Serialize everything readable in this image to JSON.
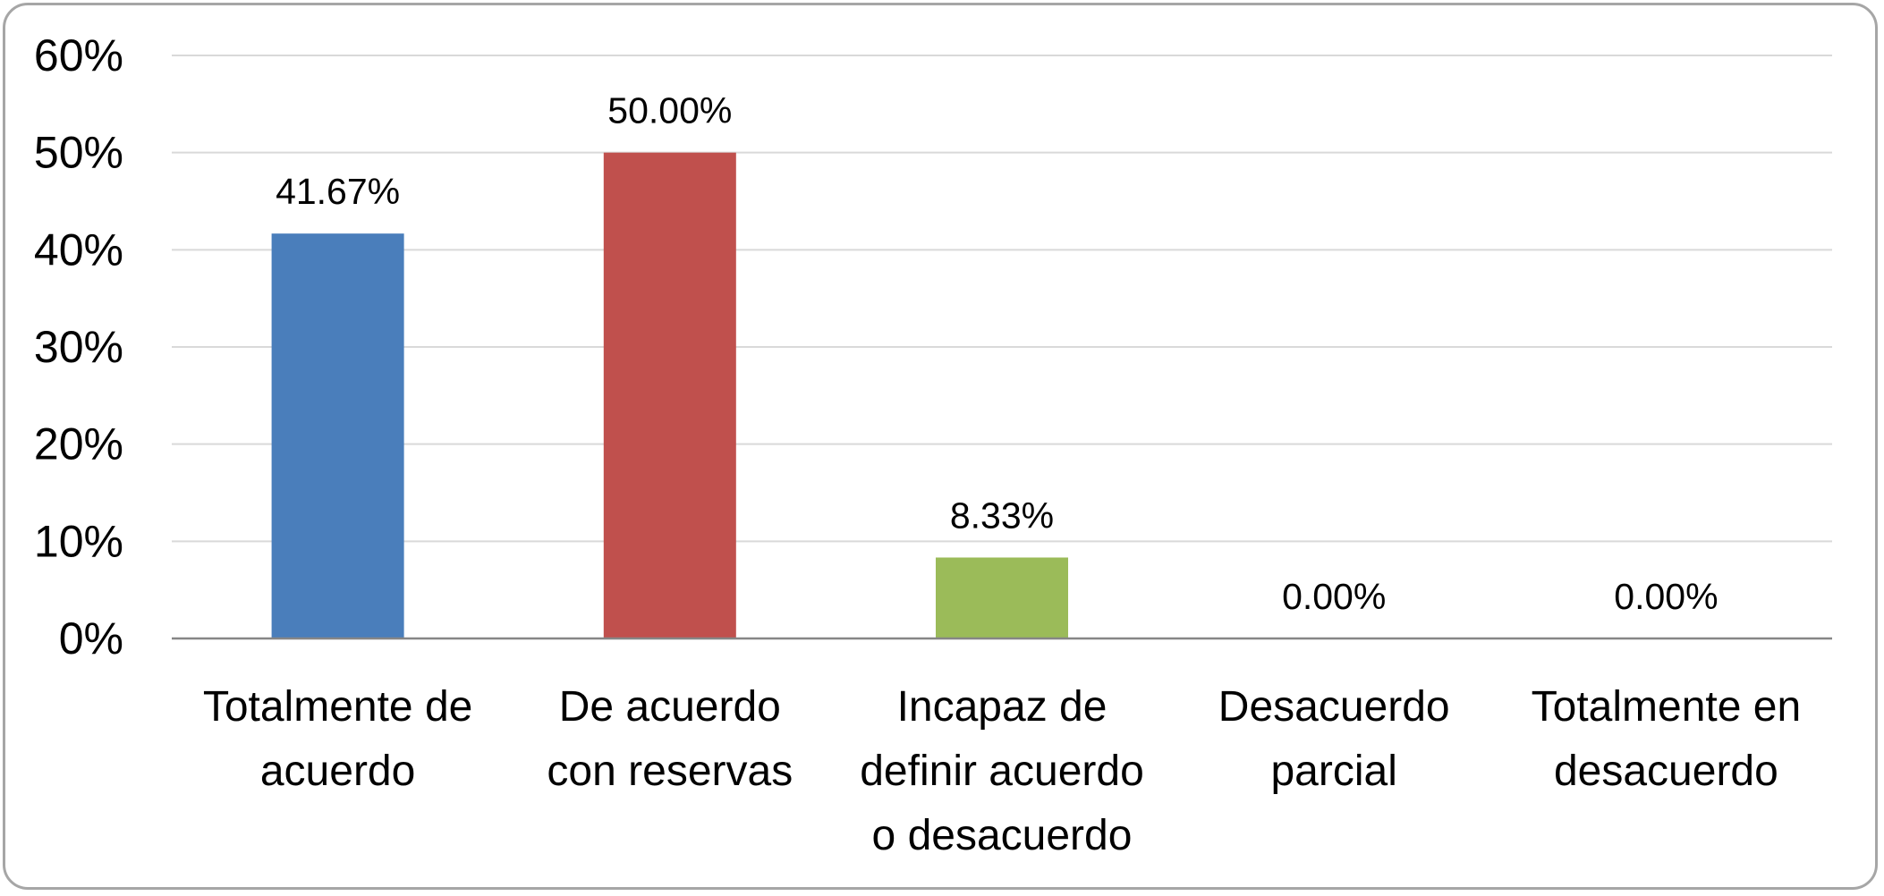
{
  "chart_data": {
    "type": "bar",
    "title": "",
    "xlabel": "",
    "ylabel": "",
    "ylim": [
      0,
      60
    ],
    "y_ticks": [
      "0%",
      "10%",
      "20%",
      "30%",
      "40%",
      "50%",
      "60%"
    ],
    "y_tick_values": [
      0,
      10,
      20,
      30,
      40,
      50,
      60
    ],
    "grid": true,
    "legend": "none",
    "categories": [
      [
        "Totalmente de",
        "acuerdo"
      ],
      [
        "De acuerdo",
        "con reservas"
      ],
      [
        "Incapaz de",
        "definir acuerdo",
        "o desacuerdo"
      ],
      [
        "Desacuerdo",
        "parcial"
      ],
      [
        "Totalmente en",
        "desacuerdo"
      ]
    ],
    "values": [
      41.67,
      50.0,
      8.33,
      0.0,
      0.0
    ],
    "data_labels": [
      "41.67%",
      "50.00%",
      "8.33%",
      "0.00%",
      "0.00%"
    ],
    "colors": [
      "#4a7ebb",
      "#c0504d",
      "#9bbb59",
      "#8064a2",
      "#4bacc6"
    ]
  }
}
